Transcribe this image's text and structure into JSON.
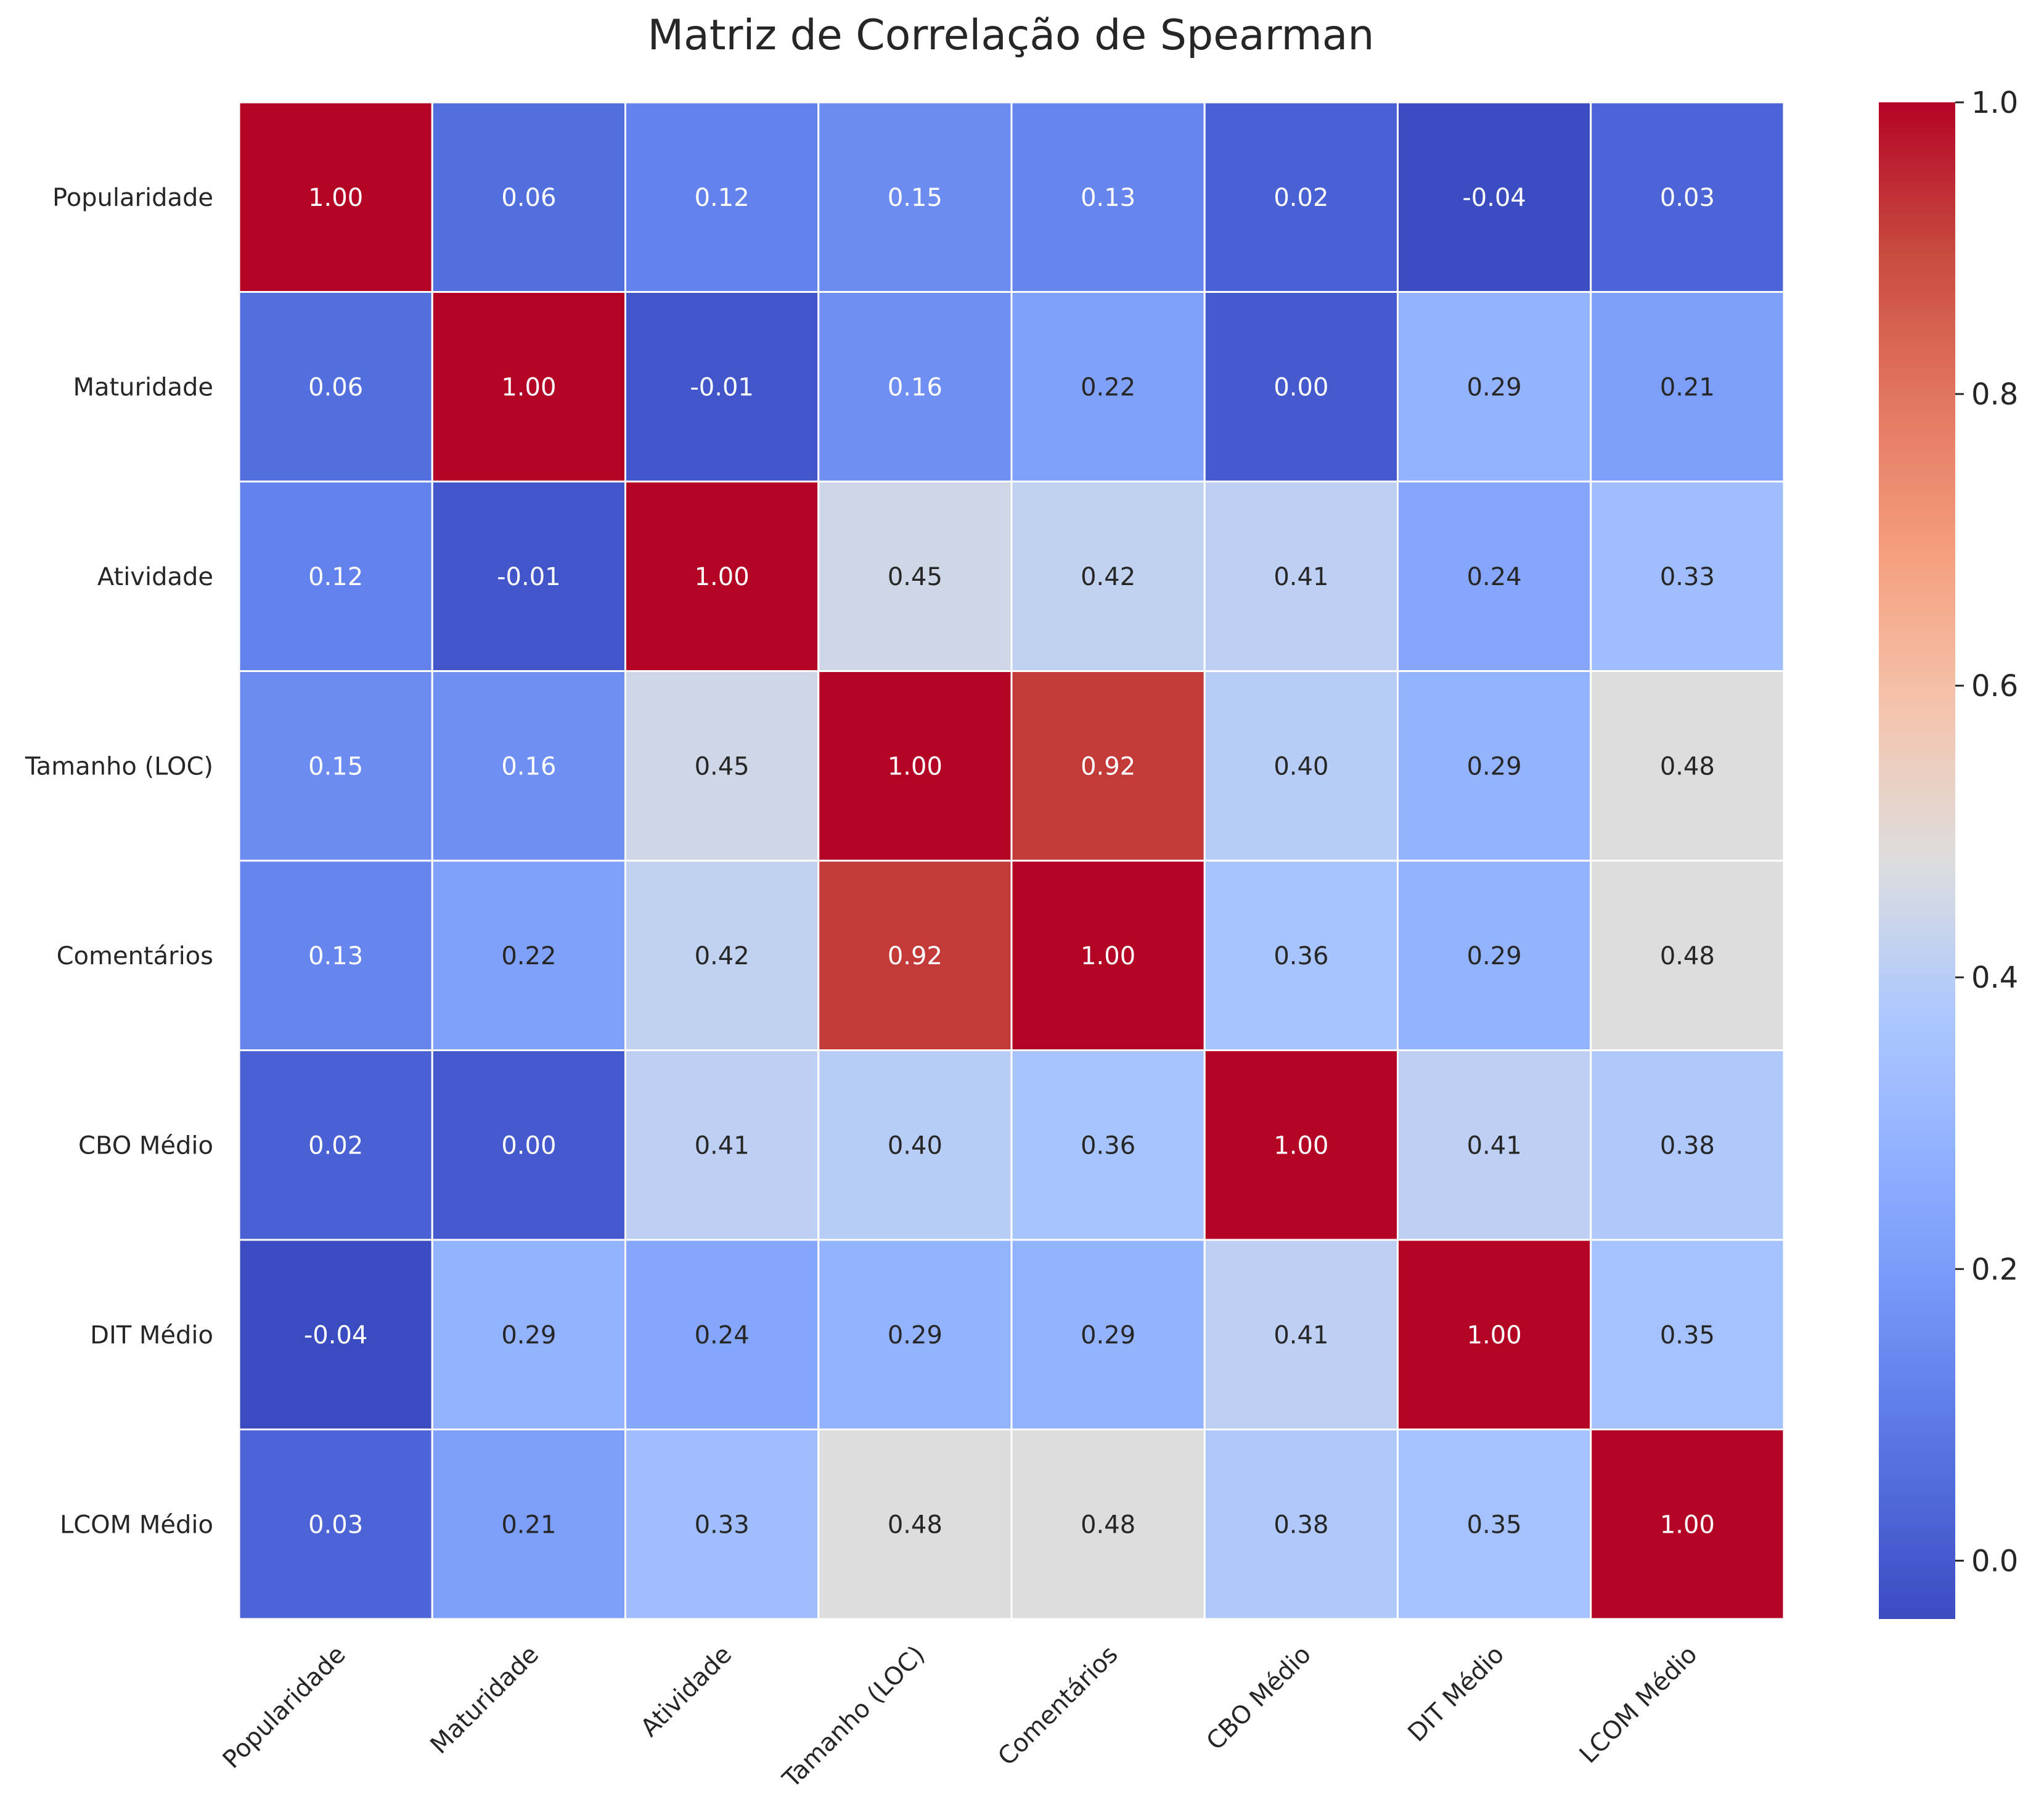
{
  "chart_data": {
    "type": "heatmap",
    "title": "Matriz de Correlação de Spearman",
    "xlabel": "",
    "ylabel": "",
    "row_labels": [
      "Popularidade",
      "Maturidade",
      "Atividade",
      "Tamanho (LOC)",
      "Comentários",
      "CBO Médio",
      "DIT Médio",
      "LCOM Médio"
    ],
    "col_labels": [
      "Popularidade",
      "Maturidade",
      "Atividade",
      "Tamanho (LOC)",
      "Comentários",
      "CBO Médio",
      "DIT Médio",
      "LCOM Médio"
    ],
    "values": [
      [
        1.0,
        0.06,
        0.12,
        0.15,
        0.13,
        0.02,
        -0.04,
        0.03
      ],
      [
        0.06,
        1.0,
        -0.01,
        0.16,
        0.22,
        0.0,
        0.29,
        0.21
      ],
      [
        0.12,
        -0.01,
        1.0,
        0.45,
        0.42,
        0.41,
        0.24,
        0.33
      ],
      [
        0.15,
        0.16,
        0.45,
        1.0,
        0.92,
        0.4,
        0.29,
        0.48
      ],
      [
        0.13,
        0.22,
        0.42,
        0.92,
        1.0,
        0.36,
        0.29,
        0.48
      ],
      [
        0.02,
        0.0,
        0.41,
        0.4,
        0.36,
        1.0,
        0.41,
        0.38
      ],
      [
        -0.04,
        0.29,
        0.24,
        0.29,
        0.29,
        0.41,
        1.0,
        0.35
      ],
      [
        0.03,
        0.21,
        0.33,
        0.48,
        0.48,
        0.38,
        0.35,
        1.0
      ]
    ],
    "annotation_format": "2 decimals",
    "colormap": "coolwarm",
    "color_range": [
      -0.04,
      1.0
    ],
    "colorbar_ticks": [
      "0.0",
      "0.2",
      "0.4",
      "0.6",
      "0.8",
      "1.0"
    ],
    "colorbar_tick_values": [
      0.0,
      0.2,
      0.4,
      0.6,
      0.8,
      1.0
    ],
    "grid_line_color": "#ffffff",
    "x_tick_rotation_deg": 45
  }
}
